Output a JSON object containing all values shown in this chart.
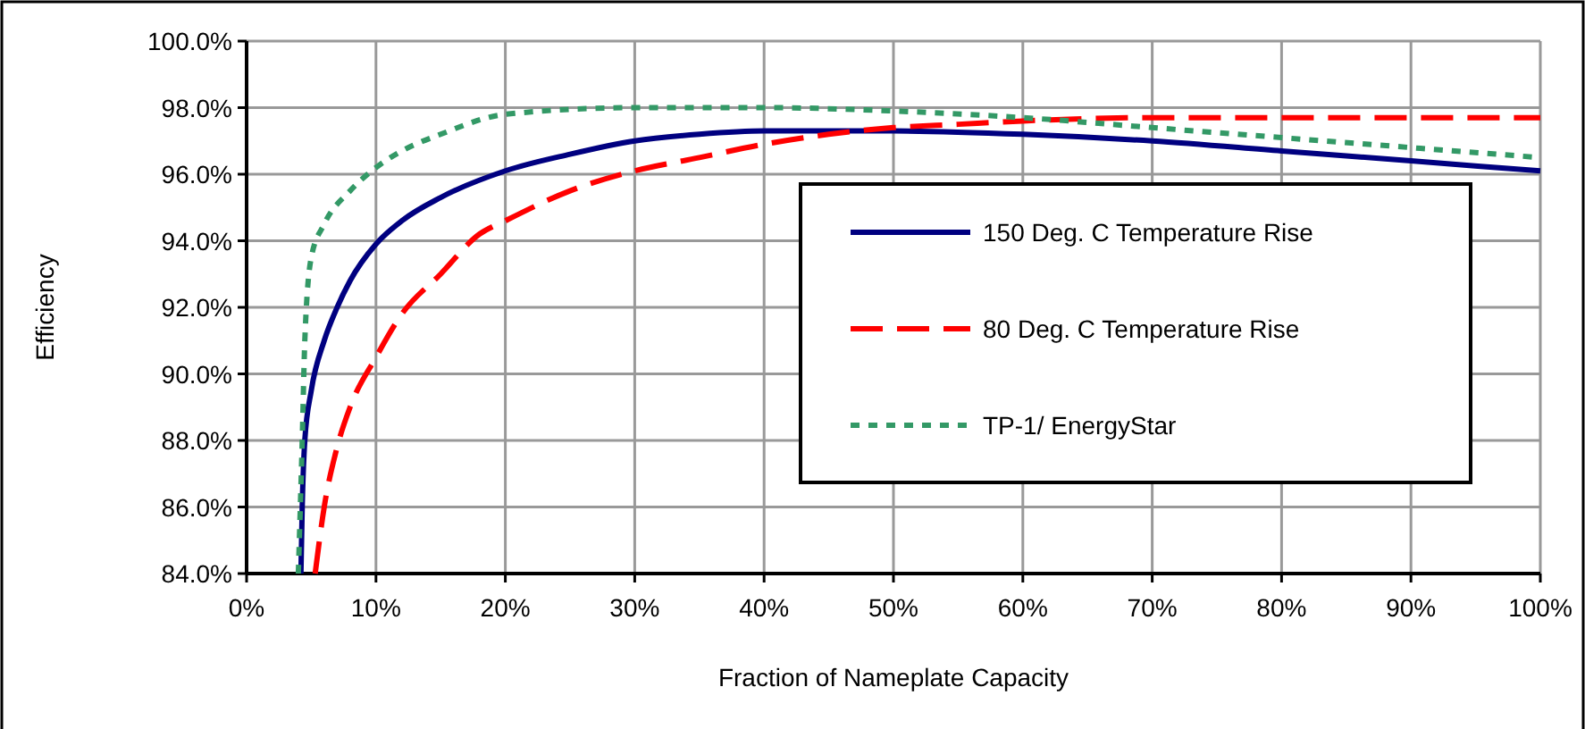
{
  "chart_data": {
    "type": "line",
    "xlabel": "Fraction of Nameplate Capacity",
    "ylabel": "Efficiency",
    "xlim": [
      0,
      100
    ],
    "ylim": [
      84,
      100
    ],
    "xticks": [
      {
        "value": 0,
        "label": "0%"
      },
      {
        "value": 10,
        "label": "10%"
      },
      {
        "value": 20,
        "label": "20%"
      },
      {
        "value": 30,
        "label": "30%"
      },
      {
        "value": 40,
        "label": "40%"
      },
      {
        "value": 50,
        "label": "50%"
      },
      {
        "value": 60,
        "label": "60%"
      },
      {
        "value": 70,
        "label": "70%"
      },
      {
        "value": 80,
        "label": "80%"
      },
      {
        "value": 90,
        "label": "90%"
      },
      {
        "value": 100,
        "label": "100%"
      }
    ],
    "yticks": [
      {
        "value": 84,
        "label": "84.0%"
      },
      {
        "value": 86,
        "label": "86.0%"
      },
      {
        "value": 88,
        "label": "88.0%"
      },
      {
        "value": 90,
        "label": "90.0%"
      },
      {
        "value": 92,
        "label": "92.0%"
      },
      {
        "value": 94,
        "label": "94.0%"
      },
      {
        "value": 96,
        "label": "96.0%"
      },
      {
        "value": 98,
        "label": "98.0%"
      },
      {
        "value": 100,
        "label": "100.0%"
      }
    ],
    "grid": true,
    "legend": "right",
    "marker": "none",
    "series": [
      {
        "name": "150 Deg. C Temperature Rise",
        "color": "#000080",
        "line_style": "solid",
        "x": [
          4.2,
          4.3,
          4.5,
          5,
          6,
          7,
          8,
          10,
          12,
          15,
          20,
          25,
          30,
          35,
          40,
          50,
          60,
          70,
          80,
          90,
          100
        ],
        "values": [
          84,
          86,
          88,
          89.5,
          91,
          92,
          92.8,
          93.9,
          94.6,
          95.3,
          96.1,
          96.6,
          97,
          97.2,
          97.3,
          97.3,
          97.2,
          97,
          96.7,
          96.4,
          96.1
        ]
      },
      {
        "name": "80 Deg. C Temperature Rise",
        "color": "#ff0000",
        "line_style": "dashed",
        "x": [
          5.3,
          6,
          7,
          8,
          10,
          12,
          15,
          18,
          20,
          25,
          30,
          35,
          40,
          45,
          50,
          55,
          60,
          70,
          100
        ],
        "values": [
          84,
          86,
          87.8,
          89,
          90.5,
          91.8,
          93,
          94.2,
          94.6,
          95.5,
          96.1,
          96.5,
          96.9,
          97.2,
          97.4,
          97.5,
          97.6,
          97.7,
          97.7
        ]
      },
      {
        "name": "TP-1/ EnergyStar",
        "color": "#339966",
        "line_style": "dotted",
        "x": [
          4,
          4.3,
          4.5,
          5,
          6,
          8,
          10,
          12,
          15,
          20,
          30,
          40,
          50,
          60,
          70,
          80,
          90,
          100
        ],
        "values": [
          84,
          88,
          91,
          93.5,
          94.5,
          95.5,
          96.2,
          96.7,
          97.2,
          97.8,
          98,
          98,
          97.9,
          97.7,
          97.4,
          97.1,
          96.8,
          96.5
        ]
      }
    ]
  }
}
